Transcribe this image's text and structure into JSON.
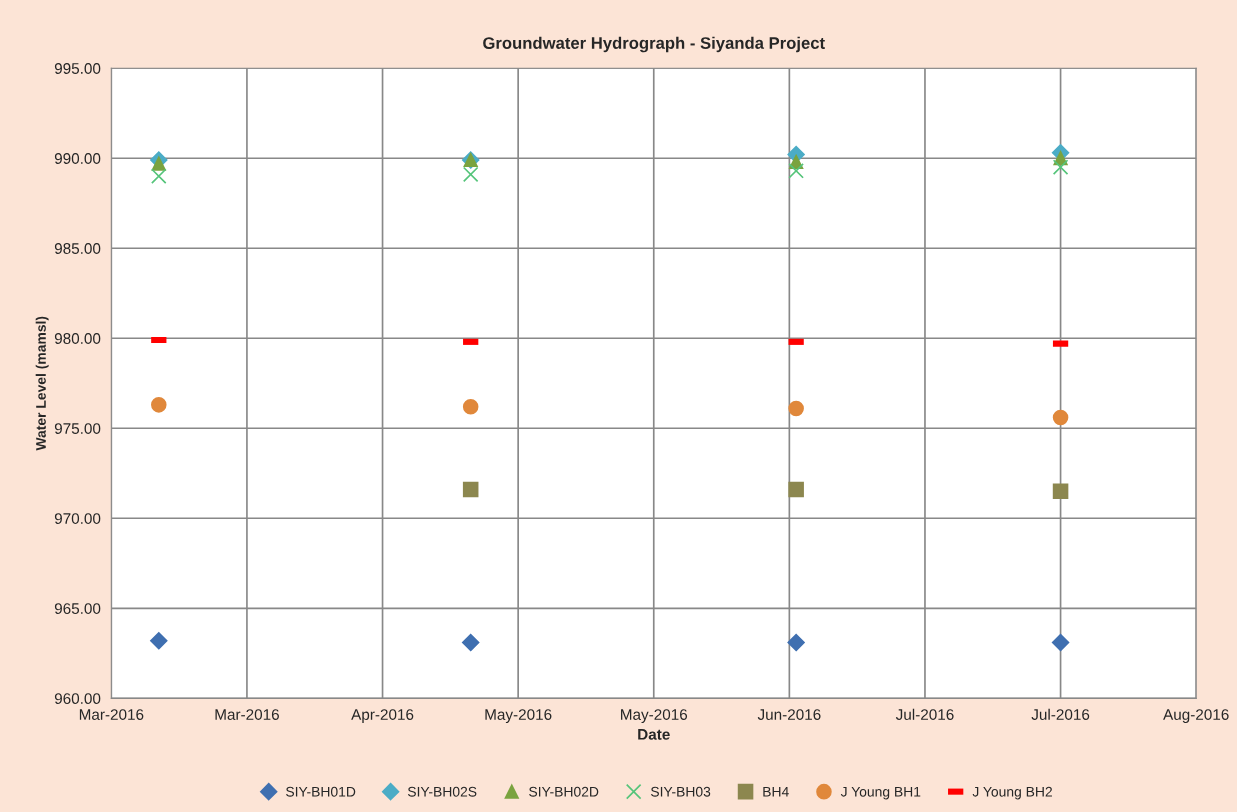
{
  "chart_data": {
    "type": "scatter",
    "title": "Groundwater Hydrograph - Siyanda Project",
    "xlabel": "Date",
    "ylabel": "Water Level (mamsl)",
    "x": [
      "2016-03-10",
      "2016-04-25",
      "2016-06-12",
      "2016-07-21"
    ],
    "series": [
      {
        "name": "SIY-BH01D",
        "color": "#3f6fb0",
        "marker": "diamond",
        "values": [
          963.2,
          963.1,
          963.1,
          963.1
        ]
      },
      {
        "name": "SIY-BH02S",
        "color": "#4bacc6",
        "marker": "diamond",
        "values": [
          989.9,
          989.9,
          990.2,
          990.3
        ]
      },
      {
        "name": "SIY-BH02D",
        "color": "#7aa33f",
        "marker": "triangle",
        "values": [
          989.7,
          989.9,
          989.8,
          990.0
        ]
      },
      {
        "name": "SIY-BH03",
        "color": "#55c47a",
        "marker": "cross",
        "values": [
          989.0,
          989.1,
          989.3,
          989.5
        ]
      },
      {
        "name": "BH4",
        "color": "#8c874f",
        "marker": "square",
        "values": [
          null,
          971.6,
          971.6,
          971.5
        ]
      },
      {
        "name": "J Young BH1",
        "color": "#e0883b",
        "marker": "circle",
        "values": [
          976.3,
          976.2,
          976.1,
          975.6
        ]
      },
      {
        "name": "J Young BH2",
        "color": "#ff0000",
        "values": [
          979.9,
          979.8,
          979.8,
          979.7
        ]
      }
    ],
    "xlim": [
      "2016-03-03",
      "2016-08-10"
    ],
    "xticks": [
      {
        "value": "2016-03-03",
        "label": "Mar-2016"
      },
      {
        "value": "2016-03-23",
        "label": "Mar-2016"
      },
      {
        "value": "2016-04-12",
        "label": "Apr-2016"
      },
      {
        "value": "2016-05-02",
        "label": "May-2016"
      },
      {
        "value": "2016-05-22",
        "label": "May-2016"
      },
      {
        "value": "2016-06-11",
        "label": "Jun-2016"
      },
      {
        "value": "2016-07-01",
        "label": "Jul-2016"
      },
      {
        "value": "2016-07-21",
        "label": "Jul-2016"
      },
      {
        "value": "2016-08-10",
        "label": "Aug-2016"
      }
    ],
    "ylim": [
      960,
      995
    ],
    "yticks": [
      {
        "value": 960,
        "label": "960.00"
      },
      {
        "value": 965,
        "label": "965.00"
      },
      {
        "value": 970,
        "label": "970.00"
      },
      {
        "value": 975,
        "label": "975.00"
      },
      {
        "value": 980,
        "label": "980.00"
      },
      {
        "value": 985,
        "label": "985.00"
      },
      {
        "value": 990,
        "label": "990.00"
      },
      {
        "value": 995,
        "label": "995.00"
      }
    ],
    "grid": true,
    "legend": "bottom"
  }
}
